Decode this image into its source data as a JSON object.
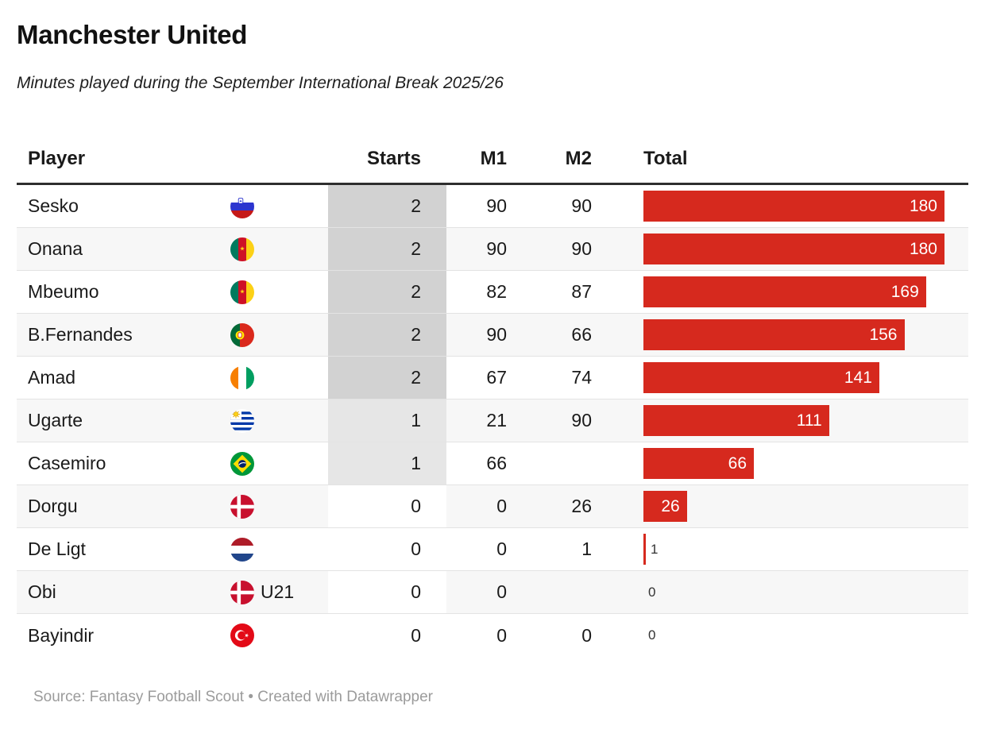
{
  "header": {
    "title": "Manchester United",
    "subtitle": "Minutes played during the September International Break 2025/26"
  },
  "chart_data": {
    "type": "table",
    "title": "Manchester United",
    "subtitle": "Minutes played during the September International Break 2025/26",
    "columns": [
      "Player",
      "Starts",
      "M1",
      "M2",
      "Total"
    ],
    "bar_column": "Total",
    "bar_max": 180,
    "heatmap_column": "Starts",
    "rows": [
      {
        "player": "Sesko",
        "flag": "slovenia",
        "note": "",
        "starts": "2",
        "m1": "90",
        "m2": "90",
        "total": 180
      },
      {
        "player": "Onana",
        "flag": "cameroon",
        "note": "",
        "starts": "2",
        "m1": "90",
        "m2": "90",
        "total": 180
      },
      {
        "player": "Mbeumo",
        "flag": "cameroon",
        "note": "",
        "starts": "2",
        "m1": "82",
        "m2": "87",
        "total": 169
      },
      {
        "player": "B.Fernandes",
        "flag": "portugal",
        "note": "",
        "starts": "2",
        "m1": "90",
        "m2": "66",
        "total": 156
      },
      {
        "player": "Amad",
        "flag": "ivory-coast",
        "note": "",
        "starts": "2",
        "m1": "67",
        "m2": "74",
        "total": 141
      },
      {
        "player": "Ugarte",
        "flag": "uruguay",
        "note": "",
        "starts": "1",
        "m1": "21",
        "m2": "90",
        "total": 111
      },
      {
        "player": "Casemiro",
        "flag": "brazil",
        "note": "",
        "starts": "1",
        "m1": "66",
        "m2": "",
        "total": 66
      },
      {
        "player": "Dorgu",
        "flag": "denmark",
        "note": "",
        "starts": "0",
        "m1": "0",
        "m2": "26",
        "total": 26
      },
      {
        "player": "De Ligt",
        "flag": "netherlands",
        "note": "",
        "starts": "0",
        "m1": "0",
        "m2": "1",
        "total": 1
      },
      {
        "player": "Obi",
        "flag": "denmark",
        "note": "U21",
        "starts": "0",
        "m1": "0",
        "m2": "",
        "total": 0
      },
      {
        "player": "Bayindir",
        "flag": "turkey",
        "note": "",
        "starts": "0",
        "m1": "0",
        "m2": "0",
        "total": 0
      }
    ]
  },
  "colors": {
    "bar": "#d6291e",
    "starts_heat_2": "#d2d2d2",
    "starts_heat_1": "#e6e6e6",
    "starts_heat_0": "#ffffff",
    "row_stripe": "#f7f7f7"
  },
  "footer": {
    "source": "Source: Fantasy Football Scout • Created with Datawrapper"
  }
}
